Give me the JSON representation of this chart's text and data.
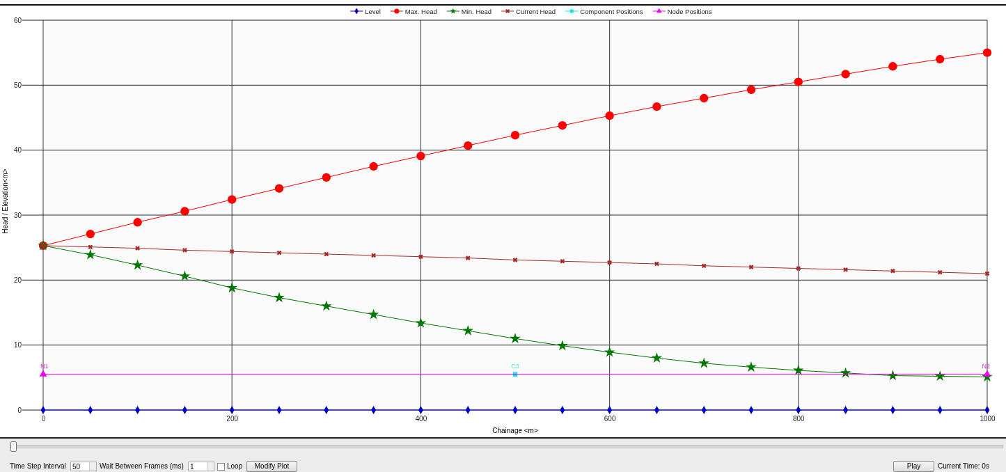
{
  "chart_data": {
    "type": "line",
    "xlabel": "Chainage <m>",
    "ylabel": "Head / Elevation<m>",
    "xlim": [
      0,
      1000
    ],
    "xticks": [
      0,
      200,
      400,
      600,
      800,
      1000
    ],
    "ylim": [
      0,
      60
    ],
    "yticks": [
      0,
      10,
      20,
      30,
      40,
      50,
      60
    ],
    "grid": true,
    "legend": "top",
    "x": [
      0,
      50,
      100,
      150,
      200,
      250,
      300,
      350,
      400,
      450,
      500,
      550,
      600,
      650,
      700,
      750,
      800,
      850,
      900,
      950,
      1000
    ],
    "series": [
      {
        "name": "Level",
        "color": "#0000cc",
        "marker": "diamond",
        "values": [
          0,
          0,
          0,
          0,
          0,
          0,
          0,
          0,
          0,
          0,
          0,
          0,
          0,
          0,
          0,
          0,
          0,
          0,
          0,
          0,
          0
        ]
      },
      {
        "name": "Max. Head",
        "color": "#ff0000",
        "marker": "circle",
        "values": [
          25.3,
          27.1,
          28.9,
          30.6,
          32.4,
          34.1,
          35.8,
          37.5,
          39.1,
          40.7,
          42.3,
          43.8,
          45.3,
          46.7,
          48.0,
          49.3,
          50.5,
          51.7,
          52.9,
          54.0,
          55.0
        ]
      },
      {
        "name": "Min. Head",
        "color": "#007700",
        "marker": "star",
        "values": [
          25.3,
          23.9,
          22.3,
          20.6,
          18.8,
          17.3,
          16.0,
          14.7,
          13.4,
          12.2,
          11.0,
          9.9,
          8.9,
          8.0,
          7.2,
          6.6,
          6.1,
          5.7,
          5.3,
          5.2,
          5.1
        ]
      },
      {
        "name": "Current Head",
        "color": "#a52a2a",
        "marker": "cross",
        "values": [
          25.3,
          25.1,
          24.9,
          24.6,
          24.4,
          24.2,
          24.0,
          23.8,
          23.6,
          23.4,
          23.1,
          22.9,
          22.7,
          22.5,
          22.2,
          22.0,
          21.8,
          21.6,
          21.4,
          21.2,
          21.0
        ]
      },
      {
        "name": "Component Positions",
        "color": "#00e5ee",
        "marker": "square",
        "x": [
          500
        ],
        "values": [
          5.5
        ]
      },
      {
        "name": "Node Positions",
        "color": "#ee00ee",
        "marker": "triangle",
        "x": [
          0,
          1000
        ],
        "values": [
          5.5,
          5.5
        ]
      }
    ],
    "annotations": [
      "Time Step Interval",
      "50",
      "Wait Between Frames (ms)",
      "1",
      "Loop",
      "Modify Plot",
      "Play",
      "Current Time: 0s",
      {
        "text": "C3",
        "x": 500,
        "y": 5.5
      },
      {
        "text": "N1",
        "x": 0,
        "y": 5.5
      },
      {
        "text": "N2",
        "x": 1000,
        "y": 5.5
      }
    ]
  }
}
